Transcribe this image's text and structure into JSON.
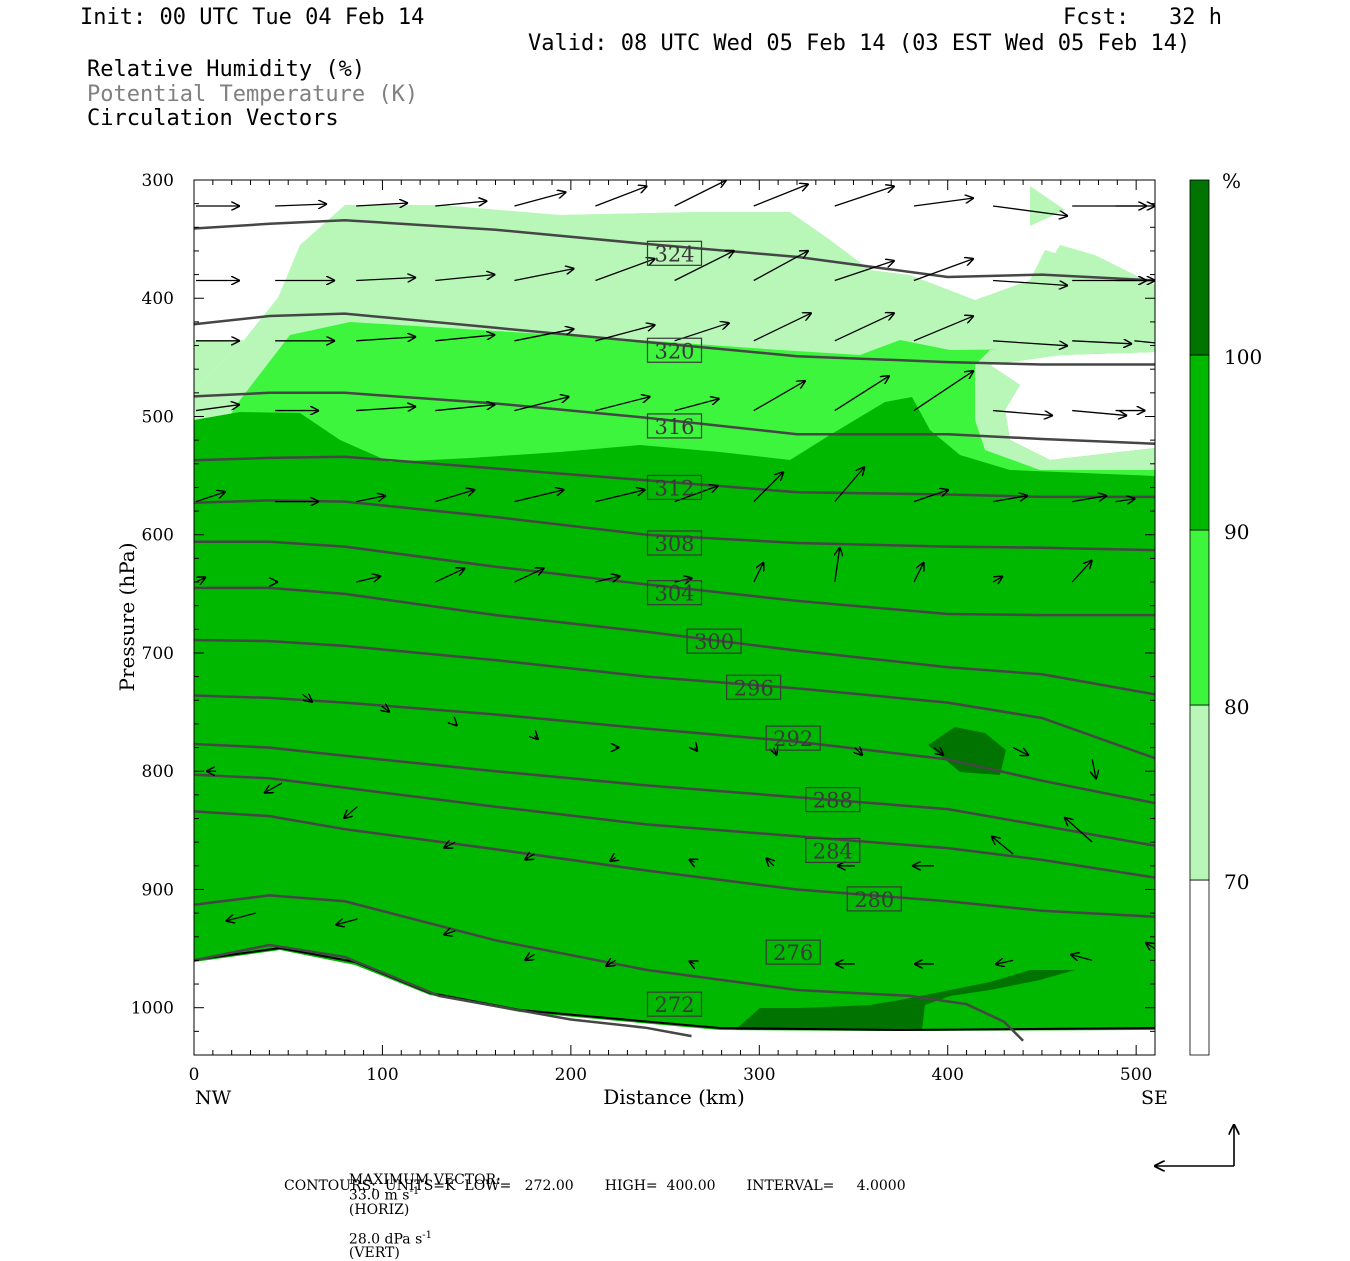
{
  "header": {
    "init": "Init: 00 UTC Tue 04 Feb 14",
    "fcst": "Fcst:   32 h",
    "valid": "Valid: 08 UTC Wed 05 Feb 14 (03 EST Wed 05 Feb 14)"
  },
  "legend": {
    "rh": "Relative Humidity (%)",
    "theta": "Potential Temperature (K)",
    "vectors": "Circulation Vectors"
  },
  "colors": {
    "rh_70_80": "#b8f7b8",
    "rh_80_90": "#3df53d",
    "rh_90_100": "#00b800",
    "rh_100": "#007300",
    "contour": "#464646",
    "theta_legend_text": "#808080"
  },
  "colorbar": {
    "unit": "%",
    "levels": [
      "70",
      "80",
      "90",
      "100"
    ]
  },
  "footer": {
    "max_vector_prefix": "MAXIMUM VECTOR:",
    "max_horiz": "33.0 m s",
    "max_horiz_exp": "-1",
    "max_horiz_suffix": "(HORIZ)",
    "max_vert": "28.0 dPa s",
    "max_vert_exp": "-1",
    "max_vert_suffix": "(VERT)",
    "contours": "CONTOURS:  UNITS=K  LOW=   272.00       HIGH=  400.00       INTERVAL=     4.0000"
  },
  "chart_data": {
    "type": "cross-section",
    "xlabel": "Distance (km)",
    "ylabel": "Pressure (hPa)",
    "xlim": [
      0,
      510
    ],
    "ylim": [
      1040,
      300
    ],
    "x_ticks": [
      "0",
      "100",
      "200",
      "300",
      "400",
      "500"
    ],
    "y_ticks": [
      "300",
      "400",
      "500",
      "600",
      "700",
      "800",
      "900",
      "1000"
    ],
    "x_end_labels": {
      "left": "NW",
      "right": "SE"
    },
    "contour_labels": [
      {
        "value": "324",
        "x": 255,
        "p": 362
      },
      {
        "value": "320",
        "x": 255,
        "p": 444
      },
      {
        "value": "316",
        "x": 255,
        "p": 508
      },
      {
        "value": "312",
        "x": 255,
        "p": 560
      },
      {
        "value": "308",
        "x": 255,
        "p": 607
      },
      {
        "value": "304",
        "x": 255,
        "p": 649
      },
      {
        "value": "300",
        "x": 276,
        "p": 690
      },
      {
        "value": "296",
        "x": 297,
        "p": 729
      },
      {
        "value": "292",
        "x": 318,
        "p": 772
      },
      {
        "value": "288",
        "x": 339,
        "p": 824
      },
      {
        "value": "284",
        "x": 339,
        "p": 867
      },
      {
        "value": "280",
        "x": 361,
        "p": 908
      },
      {
        "value": "276",
        "x": 318,
        "p": 953
      },
      {
        "value": "272",
        "x": 255,
        "p": 997
      }
    ],
    "theta_contours": [
      {
        "value": 324,
        "points": [
          [
            0,
            341
          ],
          [
            40,
            337
          ],
          [
            80,
            334
          ],
          [
            160,
            342
          ],
          [
            240,
            354
          ],
          [
            320,
            365
          ],
          [
            400,
            382
          ],
          [
            450,
            380
          ],
          [
            510,
            385
          ]
        ]
      },
      {
        "value": 320,
        "points": [
          [
            0,
            422
          ],
          [
            40,
            415
          ],
          [
            80,
            413
          ],
          [
            160,
            425
          ],
          [
            240,
            437
          ],
          [
            320,
            449
          ],
          [
            400,
            454
          ],
          [
            450,
            456
          ],
          [
            510,
            456
          ]
        ]
      },
      {
        "value": 316,
        "points": [
          [
            0,
            483
          ],
          [
            40,
            480
          ],
          [
            80,
            480
          ],
          [
            160,
            489
          ],
          [
            240,
            501
          ],
          [
            320,
            515
          ],
          [
            400,
            515
          ],
          [
            450,
            519
          ],
          [
            510,
            523
          ]
        ]
      },
      {
        "value": 312,
        "points": [
          [
            0,
            537
          ],
          [
            40,
            535
          ],
          [
            80,
            534
          ],
          [
            160,
            544
          ],
          [
            240,
            554
          ],
          [
            320,
            564
          ],
          [
            400,
            566
          ],
          [
            450,
            568
          ],
          [
            510,
            568
          ]
        ]
      },
      {
        "value": 308,
        "points": [
          [
            0,
            573
          ],
          [
            40,
            571
          ],
          [
            80,
            572
          ],
          [
            160,
            585
          ],
          [
            240,
            600
          ],
          [
            320,
            607
          ],
          [
            400,
            610
          ],
          [
            450,
            611
          ],
          [
            510,
            613
          ]
        ]
      },
      {
        "value": 304,
        "points": [
          [
            0,
            606
          ],
          [
            40,
            606
          ],
          [
            80,
            610
          ],
          [
            160,
            627
          ],
          [
            240,
            642
          ],
          [
            320,
            656
          ],
          [
            400,
            667
          ],
          [
            450,
            668
          ],
          [
            510,
            668
          ]
        ]
      },
      {
        "value": 300,
        "points": [
          [
            0,
            645
          ],
          [
            40,
            645
          ],
          [
            80,
            650
          ],
          [
            160,
            668
          ],
          [
            240,
            682
          ],
          [
            320,
            698
          ],
          [
            400,
            712
          ],
          [
            450,
            718
          ],
          [
            510,
            735
          ]
        ]
      },
      {
        "value": 296,
        "points": [
          [
            0,
            689
          ],
          [
            40,
            690
          ],
          [
            80,
            694
          ],
          [
            160,
            706
          ],
          [
            240,
            720
          ],
          [
            320,
            730
          ],
          [
            400,
            742
          ],
          [
            450,
            755
          ],
          [
            510,
            789
          ]
        ]
      },
      {
        "value": 292,
        "points": [
          [
            0,
            736
          ],
          [
            40,
            738
          ],
          [
            80,
            742
          ],
          [
            160,
            752
          ],
          [
            240,
            764
          ],
          [
            320,
            775
          ],
          [
            400,
            790
          ],
          [
            450,
            808
          ],
          [
            510,
            827
          ]
        ]
      },
      {
        "value": 288,
        "points": [
          [
            0,
            777
          ],
          [
            40,
            780
          ],
          [
            80,
            787
          ],
          [
            160,
            800
          ],
          [
            240,
            812
          ],
          [
            320,
            822
          ],
          [
            400,
            832
          ],
          [
            450,
            846
          ],
          [
            510,
            863
          ]
        ]
      },
      {
        "value": 284,
        "points": [
          [
            0,
            803
          ],
          [
            40,
            806
          ],
          [
            80,
            814
          ],
          [
            160,
            830
          ],
          [
            240,
            845
          ],
          [
            320,
            855
          ],
          [
            400,
            865
          ],
          [
            450,
            875
          ],
          [
            510,
            890
          ]
        ]
      },
      {
        "value": 280,
        "points": [
          [
            0,
            834
          ],
          [
            40,
            838
          ],
          [
            80,
            849
          ],
          [
            160,
            866
          ],
          [
            240,
            884
          ],
          [
            320,
            900
          ],
          [
            400,
            910
          ],
          [
            450,
            918
          ],
          [
            510,
            923
          ]
        ]
      },
      {
        "value": 276,
        "points": [
          [
            0,
            913
          ],
          [
            40,
            905
          ],
          [
            80,
            910
          ],
          [
            160,
            943
          ],
          [
            240,
            968
          ],
          [
            320,
            985
          ],
          [
            380,
            990
          ],
          [
            410,
            997
          ],
          [
            430,
            1012
          ],
          [
            440,
            1028
          ]
        ]
      },
      {
        "value": 272,
        "points": [
          [
            0,
            960
          ],
          [
            40,
            947
          ],
          [
            80,
            957
          ],
          [
            130,
            990
          ],
          [
            200,
            1010
          ],
          [
            240,
            1017
          ],
          [
            264,
            1024
          ]
        ]
      }
    ],
    "rh_shading": {
      "fills_70_to_100_percent": true,
      "peak_above_100": "near 780 hPa at ~410 km and near the surface 290-470 km"
    },
    "max_vector": {
      "horiz_m_s": 33.0,
      "vert_dPa_s": 28.0
    },
    "contour_info": {
      "units": "K",
      "low": 272.0,
      "high": 400.0,
      "interval": 4.0
    }
  }
}
